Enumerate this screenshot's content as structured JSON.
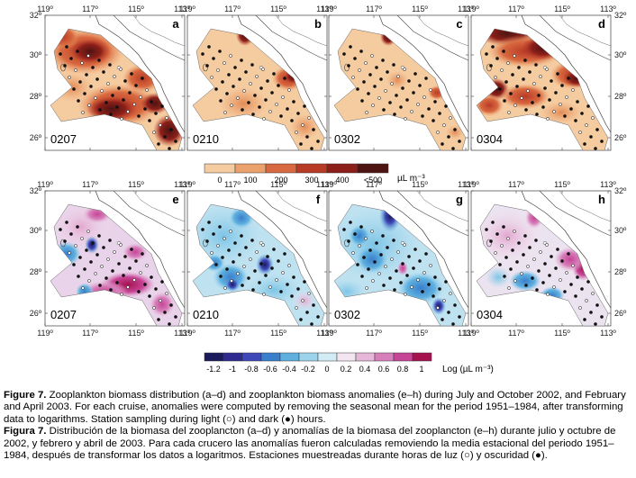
{
  "figure": {
    "lon_ticks": [
      "119º",
      "117º",
      "115º",
      "113º"
    ],
    "lat_ticks": [
      "32º",
      "30º",
      "28º",
      "26º"
    ],
    "top_panels": [
      {
        "letter": "a",
        "cruise": "0207"
      },
      {
        "letter": "b",
        "cruise": "0210"
      },
      {
        "letter": "c",
        "cruise": "0302"
      },
      {
        "letter": "d",
        "cruise": "0304"
      }
    ],
    "bottom_panels": [
      {
        "letter": "e",
        "cruise": "0207"
      },
      {
        "letter": "f",
        "cruise": "0210"
      },
      {
        "letter": "g",
        "cruise": "0302"
      },
      {
        "letter": "h",
        "cruise": "0304"
      }
    ],
    "colorbar_top": {
      "labels": [
        "0",
        "100",
        "200",
        "300",
        "400",
        "<500"
      ],
      "unit": "µL m⁻³",
      "colors": [
        "#f5cba0",
        "#eaa16c",
        "#d8683f",
        "#b83b26",
        "#8c1f1a",
        "#4e1412"
      ]
    },
    "colorbar_bottom": {
      "labels": [
        "-1.2",
        "-1",
        "-0.8",
        "-0.6",
        "-0.4",
        "-0.2",
        "0",
        "0.2",
        "0.4",
        "0.6",
        "0.8",
        "1"
      ],
      "unit": "Log (µL m⁻³)",
      "colors": [
        "#1a1a5c",
        "#2e2a8f",
        "#3f48b8",
        "#3a7fcc",
        "#5fb0df",
        "#9bd3ec",
        "#d2ecf5",
        "#f2e4f0",
        "#e6b7d8",
        "#d77fbb",
        "#c74596",
        "#a5124f"
      ]
    }
  },
  "caption": {
    "en_label": "Figure 7.",
    "en_text": " Zooplankton biomass distribution (a–d) and zooplankton biomass anomalies (e–h) during July and October 2002, and February and April 2003. For each cruise, anomalies were computed by removing the seasonal mean for the period 1951–1984, after transforming data to logarithms. Station sampling during light (○) and dark (●) hours.",
    "es_label": "Figura 7.",
    "es_text": " Distribución de la biomasa del zooplancton (a–d) y anomalías de la biomasa del zooplancton (e–h) durante julio y octubre de 2002, y febrero y abril de 2003. Para cada crucero las anomalías fueron calculadas removiendo la media estacional del periodo 1951–1984, después de transformar los datos a logaritmos. Estaciones muestreadas durante horas de luz (○) y oscuridad (●)."
  }
}
